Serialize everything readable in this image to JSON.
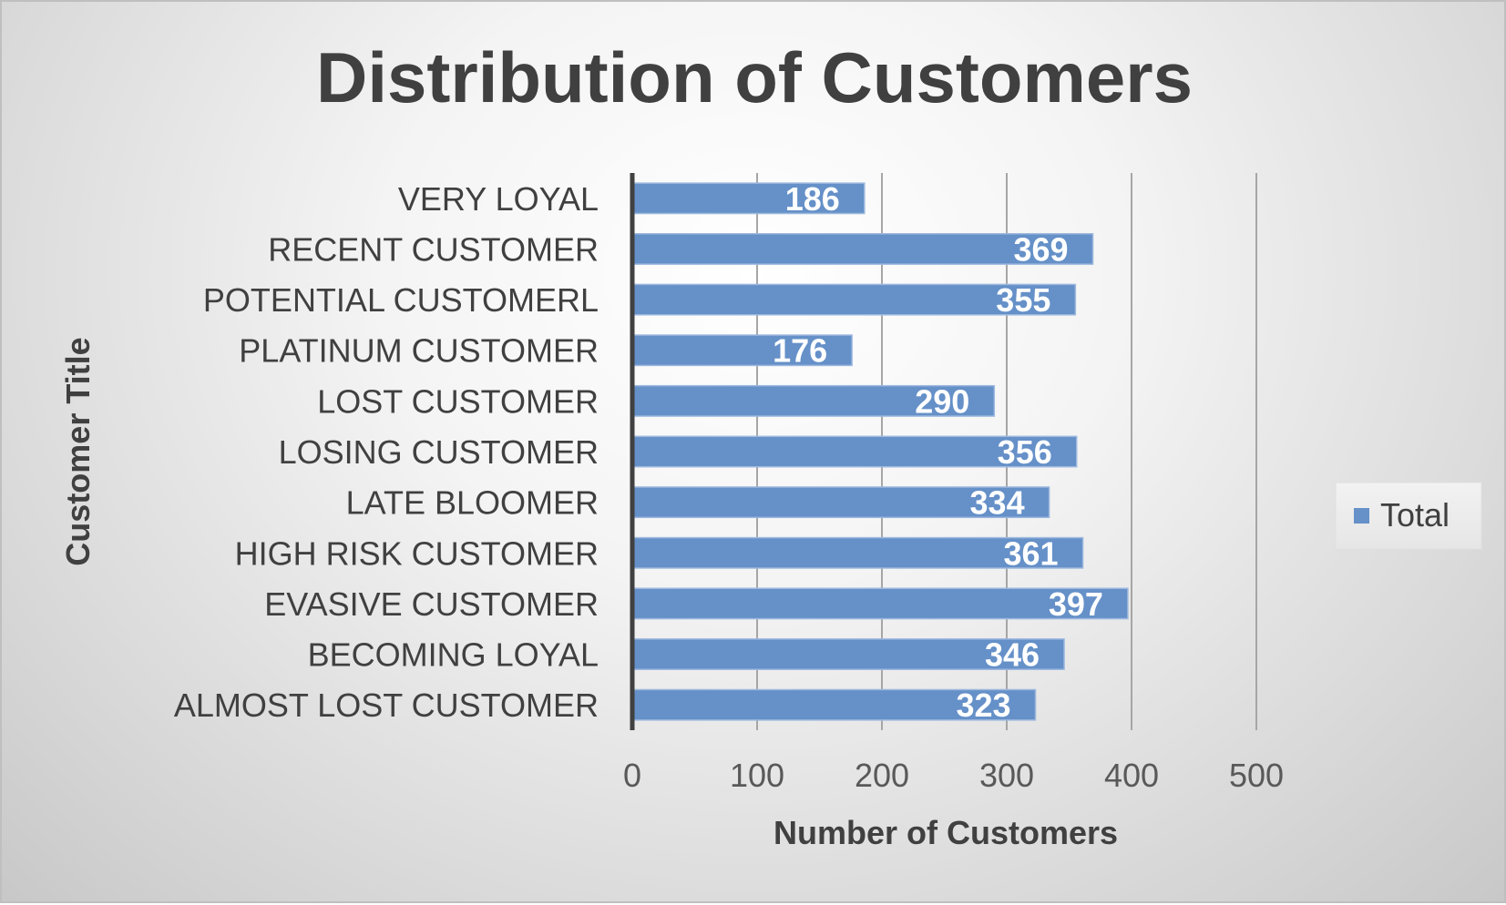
{
  "chart_data": {
    "type": "bar",
    "orientation": "horizontal",
    "title": "Distribution of Customers",
    "xlabel": "Number of Customers",
    "ylabel": "Customer Title",
    "categories": [
      "ALMOST LOST CUSTOMER",
      "BECOMING LOYAL",
      "EVASIVE CUSTOMER",
      "HIGH RISK CUSTOMER",
      "LATE BLOOMER",
      "LOSING CUSTOMER",
      "LOST CUSTOMER",
      "PLATINUM CUSTOMER",
      "POTENTIAL CUSTOMERL",
      "RECENT CUSTOMER",
      "VERY LOYAL"
    ],
    "series": [
      {
        "name": "Total",
        "values": [
          323,
          346,
          397,
          361,
          334,
          356,
          290,
          176,
          355,
          369,
          186
        ]
      }
    ],
    "xlim": [
      0,
      500
    ],
    "xticks": [
      0,
      100,
      200,
      300,
      400,
      500
    ],
    "grid": true,
    "legend_position": "right",
    "colors": {
      "bar": "#6590c8",
      "bar_edge": "#9db8de",
      "grid": "#a6a6a6",
      "axis": "#404040"
    }
  }
}
